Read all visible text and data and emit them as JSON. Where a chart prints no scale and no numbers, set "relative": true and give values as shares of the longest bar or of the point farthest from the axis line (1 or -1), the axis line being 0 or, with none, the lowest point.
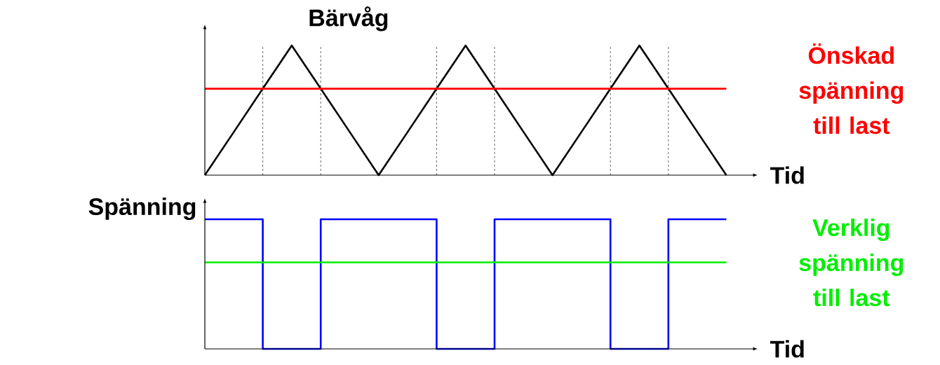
{
  "chart_data": [
    {
      "type": "line",
      "title": "Bärvåg",
      "xlabel": "Tid",
      "relative": true,
      "categories": [
        null,
        null,
        null,
        null,
        null,
        null,
        null,
        null,
        null,
        null,
        null,
        null,
        null,
        null,
        null,
        null,
        null,
        null,
        null
      ],
      "series": [
        {
          "color": "#000000",
          "values": [
            0,
            0.333,
            0.667,
            1,
            0.667,
            0.333,
            0,
            0.333,
            0.667,
            1,
            0.667,
            0.333,
            0,
            0.333,
            0.667,
            1,
            0.667,
            0.333,
            0
          ]
        },
        {
          "name": "Önskad spänning till last",
          "color": "#ff0000",
          "values": [
            0.667,
            0.667,
            0.667,
            0.667,
            0.667,
            0.667,
            0.667,
            0.667,
            0.667,
            0.667,
            0.667,
            0.667,
            0.667,
            0.667,
            0.667,
            0.667,
            0.667,
            0.667,
            0.667
          ]
        }
      ]
    },
    {
      "type": "line",
      "xlabel": "Tid",
      "ylabel": "Spänning",
      "relative": true,
      "categories": [
        null,
        null,
        null,
        null,
        null,
        null,
        null,
        null,
        null,
        null,
        null,
        null,
        null,
        null,
        null,
        null,
        null,
        null,
        null
      ],
      "series": [
        {
          "type": "step",
          "color": "#0000ff",
          "values": [
            1,
            1,
            0,
            0,
            1,
            1,
            1,
            1,
            0,
            0,
            1,
            1,
            1,
            1,
            0,
            0,
            1,
            1,
            1
          ]
        },
        {
          "name": "Verklig spänning till last",
          "color": "#00ee00",
          "values": [
            0.667,
            0.667,
            0.667,
            0.667,
            0.667,
            0.667,
            0.667,
            0.667,
            0.667,
            0.667,
            0.667,
            0.667,
            0.667,
            0.667,
            0.667,
            0.667,
            0.667,
            0.667,
            0.667
          ]
        }
      ]
    }
  ]
}
